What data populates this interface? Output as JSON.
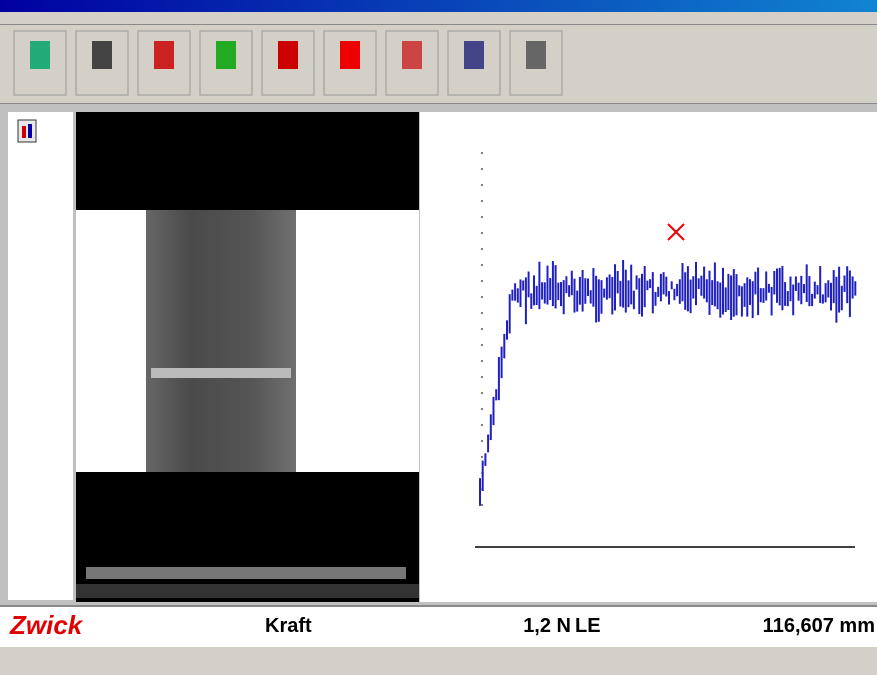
{
  "status": {
    "logo": "Zwick",
    "channel1": "Kraft",
    "value1": "1,2 N",
    "channel2": "LE",
    "value2": "116,607 mm"
  }
}
